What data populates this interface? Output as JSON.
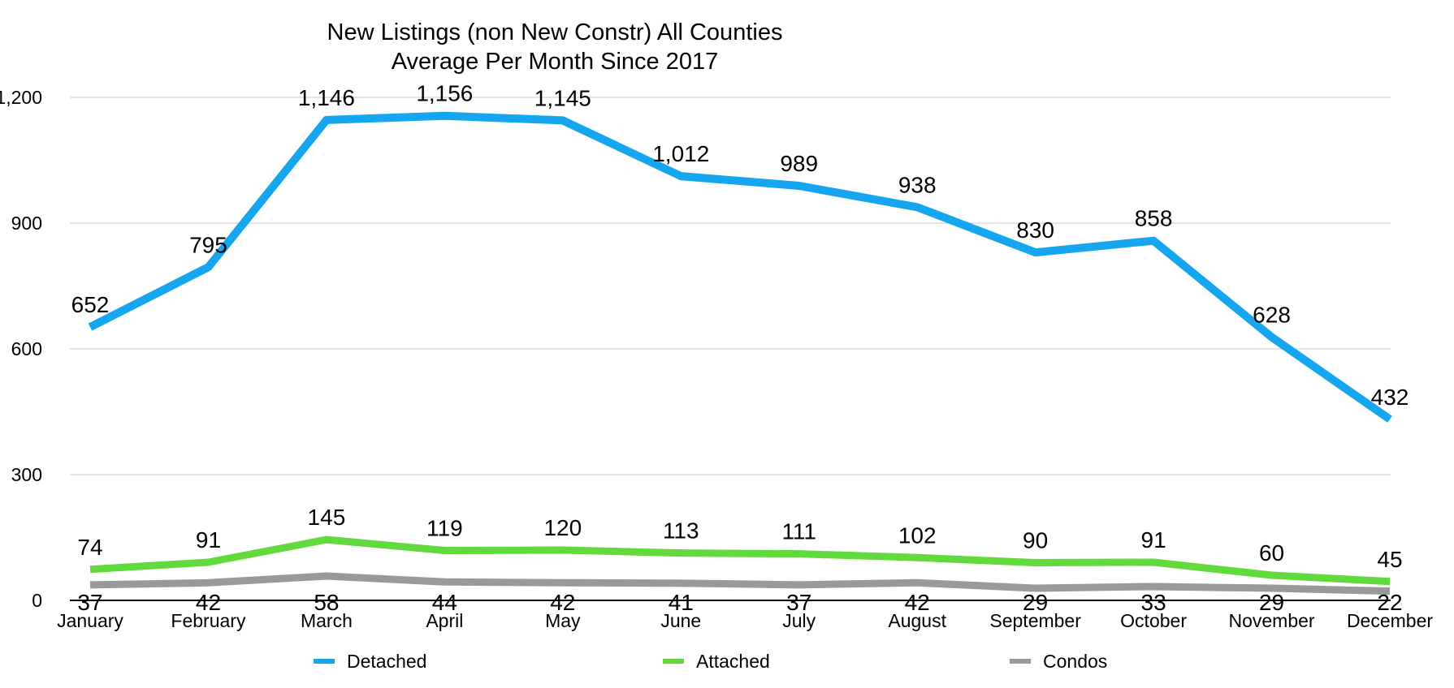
{
  "chart_data": {
    "type": "line",
    "title": "New Listings (non New Constr) All Counties",
    "subtitle": "Average Per Month Since 2017",
    "xlabel": "",
    "ylabel": "",
    "categories": [
      "January",
      "February",
      "March",
      "April",
      "May",
      "June",
      "July",
      "August",
      "September",
      "October",
      "November",
      "December"
    ],
    "ylim": [
      0,
      1200
    ],
    "yticks": [
      0,
      300,
      600,
      900,
      1200
    ],
    "ytick_labels": [
      "0",
      "300",
      "600",
      "900",
      "1,200"
    ],
    "grid": true,
    "legend_position": "bottom",
    "series": [
      {
        "name": "Detached",
        "color": "#16A6F0",
        "values": [
          652,
          795,
          1146,
          1156,
          1145,
          1012,
          989,
          938,
          830,
          858,
          628,
          432
        ],
        "labels": [
          "652",
          "795",
          "1,146",
          "1,156",
          "1,145",
          "1,012",
          "989",
          "938",
          "830",
          "858",
          "628",
          "432"
        ]
      },
      {
        "name": "Attached",
        "color": "#62D93C",
        "values": [
          74,
          91,
          145,
          119,
          120,
          113,
          111,
          102,
          90,
          91,
          60,
          45
        ],
        "labels": [
          "74",
          "91",
          "145",
          "119",
          "120",
          "113",
          "111",
          "102",
          "90",
          "91",
          "60",
          "45"
        ]
      },
      {
        "name": "Condos",
        "color": "#999999",
        "values": [
          37,
          42,
          58,
          44,
          42,
          41,
          37,
          42,
          29,
          33,
          29,
          22
        ],
        "labels": [
          "37",
          "42",
          "58",
          "44",
          "42",
          "41",
          "37",
          "42",
          "29",
          "33",
          "29",
          "22"
        ]
      }
    ]
  }
}
